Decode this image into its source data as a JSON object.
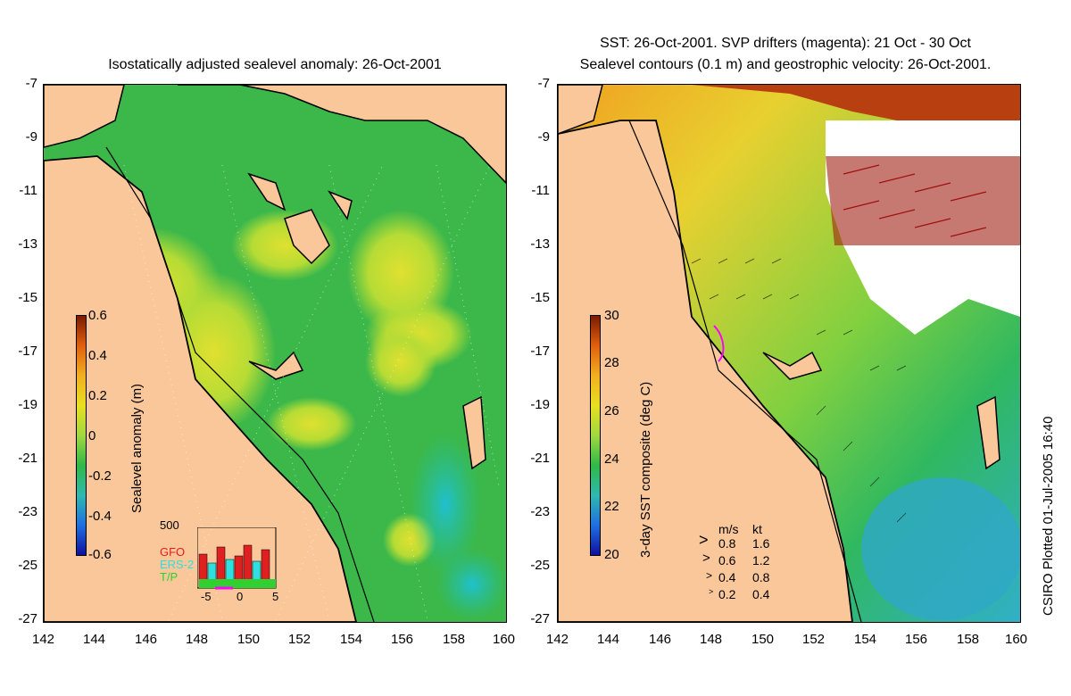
{
  "left_panel": {
    "title": "Isostatically adjusted sealevel anomaly: 26-Oct-2001",
    "y_ticks": [
      "-7",
      "-9",
      "-11",
      "-13",
      "-15",
      "-17",
      "-19",
      "-21",
      "-23",
      "-25",
      "-27"
    ],
    "x_ticks": [
      "142",
      "144",
      "146",
      "148",
      "150",
      "152",
      "154",
      "156",
      "158",
      "160"
    ],
    "colorbar": {
      "label": "Sealevel anomaly (m)",
      "ticks": [
        "0.6",
        "0.4",
        "0.2",
        "0",
        "-0.2",
        "-0.4",
        "-0.6"
      ]
    },
    "inset": {
      "top_tick": "500",
      "x_ticks": [
        "-5",
        "0",
        "5"
      ],
      "satellites": [
        {
          "name": "GFO",
          "color": "#e02020"
        },
        {
          "name": "ERS-2",
          "color": "#30e0e0"
        },
        {
          "name": "T/P",
          "color": "#30d030"
        }
      ]
    }
  },
  "right_panel": {
    "title_line1": "SST: 26-Oct-2001. SVP drifters (magenta): 21 Oct - 30 Oct",
    "title_line2": "Sealevel contours (0.1 m) and geostrophic velocity: 26-Oct-2001.",
    "y_ticks": [
      "-7",
      "-9",
      "-11",
      "-13",
      "-15",
      "-17",
      "-19",
      "-21",
      "-23",
      "-25",
      "-27"
    ],
    "x_ticks": [
      "142",
      "144",
      "146",
      "148",
      "150",
      "152",
      "154",
      "156",
      "158",
      "160"
    ],
    "colorbar": {
      "label": "3-day SST composite (deg C)",
      "ticks": [
        "30",
        "28",
        "26",
        "24",
        "22",
        "20"
      ]
    },
    "velocity_legend": {
      "header_ms": "m/s",
      "header_kt": "kt",
      "rows": [
        {
          "ms": "0.8",
          "kt": "1.6"
        },
        {
          "ms": "0.6",
          "kt": "1.2"
        },
        {
          "ms": "0.4",
          "kt": "0.8"
        },
        {
          "ms": "0.2",
          "kt": "0.4"
        }
      ]
    }
  },
  "credit": "CSIRO Plotted 01-Jul-2005 16:40",
  "colors": {
    "land": "#f9c79a",
    "ocean_green": "#3cb84a",
    "anomaly_high": "#c8e030",
    "coastline": "#000000"
  }
}
